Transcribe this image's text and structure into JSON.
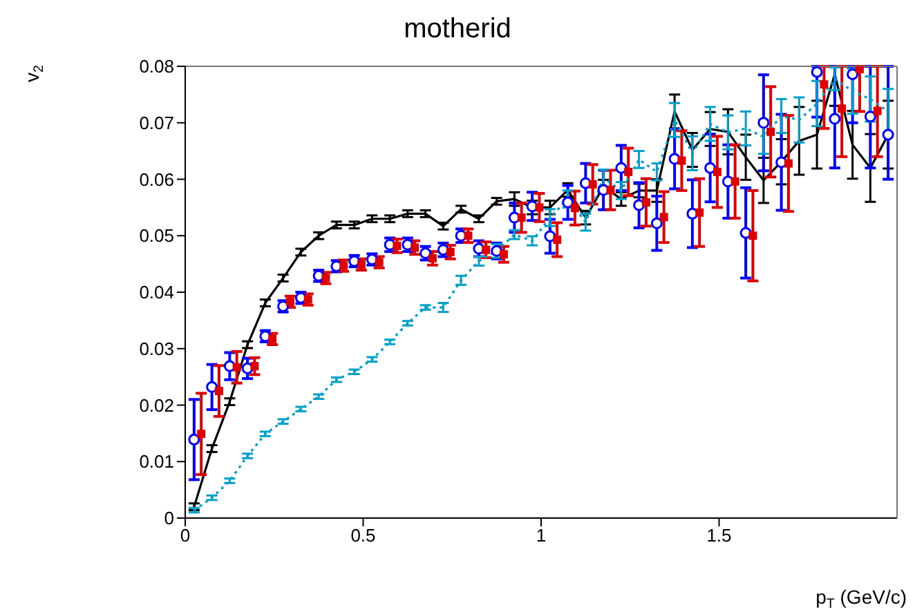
{
  "chart_data": {
    "type": "scatter",
    "title": "motherid",
    "xlabel": "p$_{T}$ (GeV/c)",
    "ylabel": "v$_{2}$",
    "x": [
      0.025,
      0.075,
      0.125,
      0.175,
      0.225,
      0.275,
      0.325,
      0.375,
      0.425,
      0.475,
      0.525,
      0.575,
      0.625,
      0.675,
      0.725,
      0.775,
      0.825,
      0.875,
      0.925,
      0.975,
      1.025,
      1.075,
      1.125,
      1.175,
      1.225,
      1.275,
      1.325,
      1.375,
      1.425,
      1.475,
      1.525,
      1.575,
      1.625,
      1.675,
      1.725,
      1.775,
      1.825,
      1.875,
      1.925,
      1.975
    ],
    "xlim": [
      0,
      2
    ],
    "xticks": [
      0,
      0.5,
      1,
      1.5
    ],
    "ylim": [
      0,
      0.08
    ],
    "yticks": [
      0,
      0.01,
      0.02,
      0.03,
      0.04,
      0.05,
      0.06,
      0.07,
      0.08
    ],
    "series": [
      {
        "type": "line",
        "color": "#000000",
        "marker": "none",
        "line_style": "solid",
        "values": [
          0.002,
          0.0123,
          0.0206,
          0.0307,
          0.0381,
          0.0425,
          0.0471,
          0.05,
          0.0519,
          0.0519,
          0.053,
          0.053,
          0.0539,
          0.0539,
          0.0517,
          0.0547,
          0.053,
          0.0561,
          0.0565,
          0.055,
          0.055,
          0.0581,
          0.0532,
          0.0587,
          0.0565,
          0.058,
          0.058,
          0.072,
          0.0652,
          0.0689,
          0.0684,
          0.0639,
          0.0598,
          0.0631,
          0.0668,
          0.0679,
          0.0786,
          0.0661,
          0.062,
          0.0679
        ],
        "errors": [
          0.0006,
          0.0006,
          0.0006,
          0.0006,
          0.0006,
          0.0006,
          0.0006,
          0.0006,
          0.0006,
          0.0006,
          0.0006,
          0.0006,
          0.0006,
          0.0006,
          0.0006,
          0.0006,
          0.0006,
          0.0006,
          0.0012,
          0.0012,
          0.0012,
          0.0012,
          0.0012,
          0.0012,
          0.0012,
          0.0012,
          0.002,
          0.003,
          0.003,
          0.003,
          0.004,
          0.004,
          0.004,
          0.004,
          0.006,
          0.006,
          [
            0.073,
            0.08
          ],
          0.006,
          0.006,
          0.006
        ]
      },
      {
        "color": "#0000ff",
        "marker": "circle",
        "values": [
          0.0139,
          0.0232,
          0.0269,
          0.0265,
          0.0322,
          0.0375,
          0.039,
          0.0429,
          0.0446,
          0.0455,
          0.0458,
          0.0484,
          0.0484,
          0.0469,
          0.0475,
          0.05,
          0.0477,
          0.0473,
          0.0532,
          0.0552,
          0.0499,
          0.0559,
          0.0593,
          0.0581,
          0.062,
          0.0554,
          0.0522,
          0.0636,
          0.0539,
          0.062,
          0.0596,
          0.0505,
          0.07,
          0.063,
          null,
          0.079,
          0.0707,
          0.0786,
          0.0711,
          0.0679
        ],
        "errors": [
          0.0071,
          0.004,
          0.0024,
          0.0018,
          0.001,
          0.001,
          0.001,
          0.001,
          0.001,
          0.001,
          0.001,
          0.0012,
          0.0012,
          0.0012,
          0.0012,
          0.0012,
          0.0014,
          0.0014,
          0.0026,
          0.0025,
          0.003,
          0.003,
          0.0035,
          0.0035,
          0.004,
          0.004,
          0.0048,
          0.0053,
          0.006,
          0.006,
          0.0065,
          0.008,
          0.0085,
          0.0085,
          null,
          [
            0.071,
            0.08
          ],
          [
            0.062,
            0.08
          ],
          [
            0.07,
            0.08
          ],
          [
            0.062,
            0.08
          ],
          [
            0.06,
            0.08
          ]
        ]
      },
      {
        "color": "#dd0000",
        "marker": "square",
        "x": [
          0.045,
          0.095,
          0.145,
          0.195,
          0.245,
          0.295,
          0.345,
          0.395,
          0.445,
          0.495,
          0.545,
          0.595,
          0.645,
          0.695,
          0.745,
          0.795,
          0.845,
          0.895,
          0.945,
          0.995,
          1.045,
          1.095,
          1.145,
          1.195,
          1.245,
          1.295,
          1.345,
          1.395,
          1.445,
          1.495,
          1.545,
          1.595,
          1.645,
          1.695,
          1.745,
          1.795,
          1.845,
          1.895,
          1.945
        ],
        "values": [
          0.0149,
          0.0225,
          0.0267,
          0.0269,
          0.0317,
          0.0383,
          0.0387,
          0.0425,
          0.0447,
          0.0449,
          0.0453,
          0.0482,
          0.0479,
          0.046,
          0.0471,
          0.05,
          0.0475,
          0.0467,
          0.0532,
          0.055,
          0.0493,
          0.0549,
          0.0591,
          0.0581,
          0.0613,
          0.0559,
          0.0533,
          0.0633,
          0.0541,
          0.0613,
          0.0596,
          0.05,
          0.0684,
          0.0628,
          null,
          0.0768,
          0.0725,
          0.0795,
          0.0721
        ],
        "errors": [
          0.0072,
          0.0045,
          0.0028,
          0.0015,
          0.001,
          0.001,
          0.001,
          0.001,
          0.001,
          0.001,
          0.001,
          0.0012,
          0.0012,
          0.0012,
          0.0012,
          0.0012,
          0.0014,
          0.0014,
          0.0026,
          0.0025,
          0.003,
          0.003,
          0.0035,
          0.0035,
          0.0042,
          0.0042,
          0.0045,
          0.0053,
          0.006,
          0.0063,
          0.0065,
          0.008,
          0.008,
          0.0085,
          null,
          [
            0.069,
            0.08
          ],
          [
            0.064,
            0.08
          ],
          [
            0.072,
            0.08
          ],
          [
            0.064,
            0.08
          ]
        ]
      },
      {
        "type": "line",
        "color": "#00a0c8",
        "marker": "none",
        "line_style": "dotted",
        "values": [
          0.0014,
          0.0036,
          0.0066,
          0.011,
          0.0149,
          0.0171,
          0.0193,
          0.0215,
          0.0245,
          0.0259,
          0.0281,
          0.0312,
          0.0345,
          0.0373,
          0.0373,
          0.0421,
          0.0455,
          0.0473,
          0.0502,
          0.0491,
          0.0532,
          0.0565,
          0.0524,
          0.0602,
          0.058,
          0.0635,
          0.0613,
          0.0705,
          0.0646,
          0.0698,
          0.0683,
          0.069,
          0.0675,
          0.0712,
          0.0705,
          0.0734,
          0.0778,
          0.0756,
          0.0742,
          0.072
        ],
        "errors": [
          0.0004,
          0.0004,
          0.0004,
          0.0004,
          0.0004,
          0.0004,
          0.0004,
          0.0004,
          0.0004,
          0.0004,
          0.0004,
          0.0004,
          0.0004,
          0.0004,
          0.0008,
          0.0008,
          0.0008,
          0.0012,
          0.0008,
          0.0008,
          0.0015,
          0.0015,
          0.0015,
          0.0015,
          0.0015,
          0.0015,
          0.0015,
          0.003,
          0.003,
          0.003,
          0.003,
          0.003,
          0.003,
          0.003,
          0.004,
          0.004,
          0.002,
          0.004,
          0.004,
          0.004
        ]
      }
    ]
  }
}
